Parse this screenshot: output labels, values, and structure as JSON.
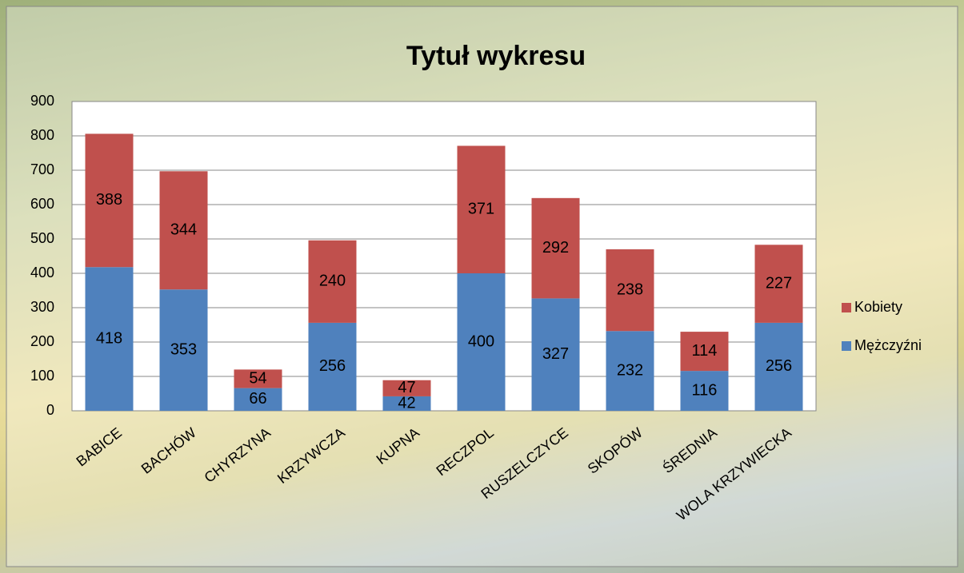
{
  "chart_data": {
    "type": "bar",
    "stacked": true,
    "title": "Tytuł wykresu",
    "categories": [
      "BABICE",
      "BACHÓW",
      "CHYRZYNA",
      "KRZYWCZA",
      "KUPNA",
      "RECZPOL",
      "RUSZELCZYCE",
      "SKOPÓW",
      "ŚREDNIA",
      "WOLA KRZYWIECKA"
    ],
    "series": [
      {
        "name": "Mężczyźni",
        "color": "#4f81bd",
        "values": [
          418,
          353,
          66,
          256,
          42,
          400,
          327,
          232,
          116,
          256
        ]
      },
      {
        "name": "Kobiety",
        "color": "#c0504d",
        "values": [
          388,
          344,
          54,
          240,
          47,
          371,
          292,
          238,
          114,
          227
        ]
      }
    ],
    "ylim": [
      0,
      900
    ],
    "yticks": [
      0,
      100,
      200,
      300,
      400,
      500,
      600,
      700,
      800,
      900
    ],
    "grid": true,
    "legend": "right"
  }
}
